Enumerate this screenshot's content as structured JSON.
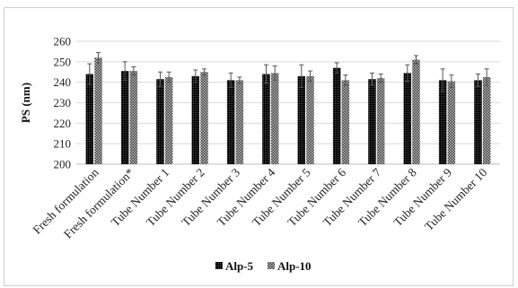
{
  "chart_data": {
    "type": "bar",
    "title": "",
    "xlabel": "",
    "ylabel": "PS (nm)",
    "ylim": [
      200,
      260
    ],
    "yticks": [
      200,
      210,
      220,
      230,
      240,
      250,
      260
    ],
    "grid": true,
    "legend_position": "bottom",
    "categories": [
      "Fresh formulation",
      "Fresh formulation*",
      "Tube Number 1",
      "Tube Number 2",
      "Tube Number 3",
      "Tube Number 4",
      "Tube Number 5",
      "Tube Number 6",
      "Tube Number 7",
      "Tube Number 8",
      "Tube Number 9",
      "Tube Number 10"
    ],
    "series": [
      {
        "name": "Alp-5",
        "pattern": "dense-black",
        "color": "#111111",
        "values": [
          244,
          245.5,
          241.5,
          243,
          241,
          244,
          243,
          247,
          241.5,
          244.5,
          241,
          241
        ],
        "errors": [
          5,
          4.5,
          3.5,
          3,
          3.5,
          4.5,
          5.5,
          2.5,
          3,
          4,
          5.5,
          3
        ]
      },
      {
        "name": "Alp-10",
        "pattern": "checker-gray",
        "color": "#8c8c8c",
        "values": [
          252,
          245.5,
          242.5,
          245,
          241,
          244.5,
          243,
          241,
          242,
          251,
          240.5,
          242.5
        ],
        "errors": [
          2.5,
          2,
          2.5,
          1.5,
          1.5,
          3.5,
          2.5,
          2.5,
          2,
          2,
          3,
          4
        ]
      }
    ]
  }
}
